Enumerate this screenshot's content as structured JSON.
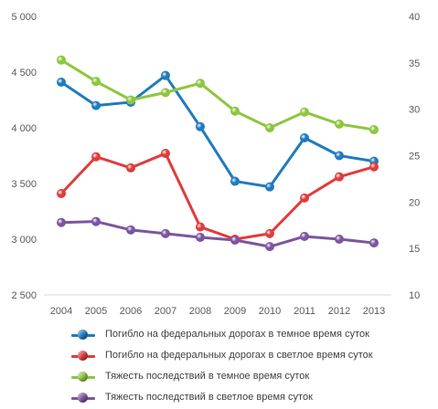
{
  "chart_data": {
    "type": "line",
    "categories": [
      "2004",
      "2005",
      "2006",
      "2007",
      "2008",
      "2009",
      "2010",
      "2011",
      "2012",
      "2013"
    ],
    "y_left": {
      "ticks": [
        "2 500",
        "3 000",
        "3 500",
        "4 000",
        "4 500",
        "5 000"
      ],
      "range": [
        2500,
        5000
      ]
    },
    "y_right": {
      "ticks": [
        "10",
        "15",
        "20",
        "25",
        "30",
        "35",
        "40"
      ],
      "range": [
        10,
        40
      ]
    },
    "grid": false,
    "legend_position": "bottom",
    "series": [
      {
        "name": "Погибло на федеральных дорогах в темное время суток",
        "axis": "left",
        "color": "#1f7bbf",
        "values": [
          4410,
          4200,
          4230,
          4470,
          4010,
          3520,
          3470,
          3910,
          3750,
          3700
        ]
      },
      {
        "name": "Погибло на федеральных дорогах в светлое время суток",
        "axis": "left",
        "color": "#e03c3c",
        "values": [
          3410,
          3740,
          3640,
          3770,
          3110,
          3000,
          3050,
          3370,
          3560,
          3650
        ]
      },
      {
        "name": "Тяжесть последствий в темное время суток",
        "axis": "right",
        "color": "#8dc63f",
        "values": [
          35.3,
          33.0,
          31.0,
          31.8,
          32.8,
          29.8,
          28.0,
          29.7,
          28.4,
          27.8
        ]
      },
      {
        "name": "Тяжесть последствий в светлое время суток",
        "axis": "right",
        "color": "#7b559f",
        "values": [
          17.8,
          17.9,
          17.0,
          16.6,
          16.2,
          15.9,
          15.2,
          16.3,
          16.0,
          15.6
        ]
      }
    ]
  }
}
